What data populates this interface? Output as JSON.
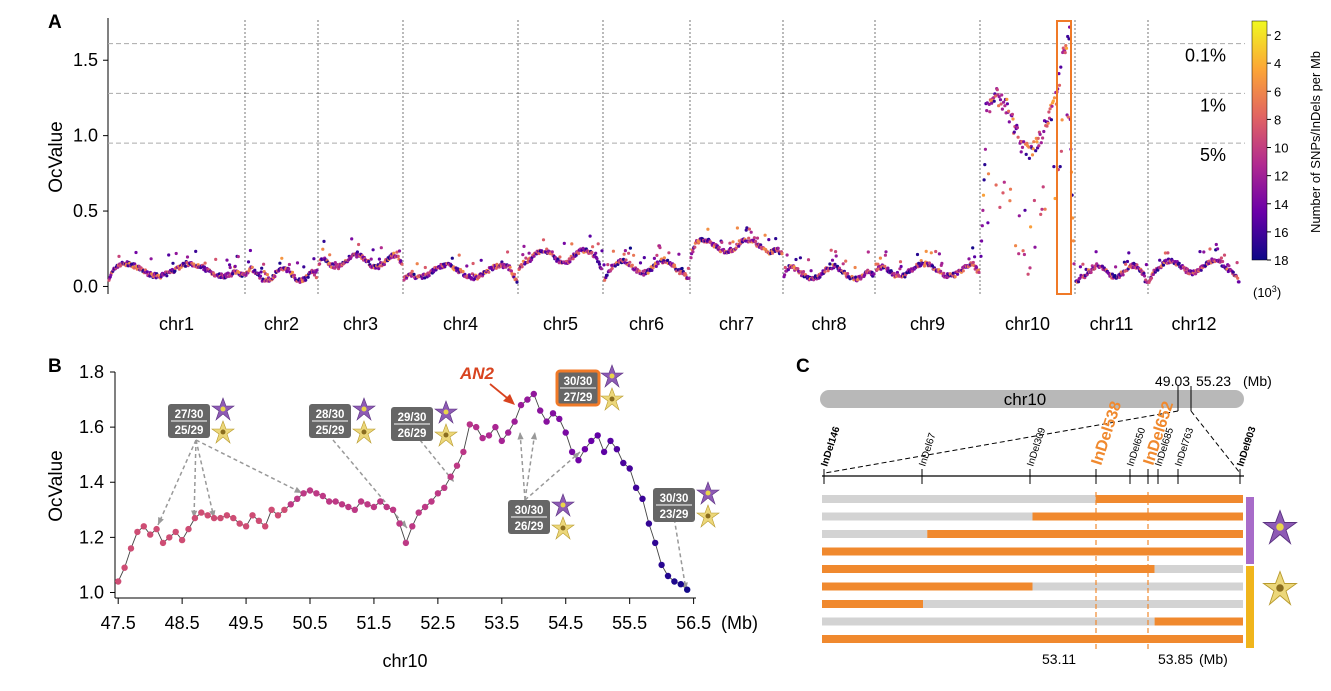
{
  "panels": {
    "a": {
      "letter": "A"
    },
    "b": {
      "letter": "B"
    },
    "c": {
      "letter": "C"
    }
  },
  "chart_data": [
    {
      "type": "scatter",
      "panel": "A",
      "ylabel": "OcValue",
      "xlabel": "",
      "ylim": [
        -0.05,
        1.78
      ],
      "yticks": [
        "0.0",
        "0.5",
        "1.0",
        "1.5"
      ],
      "ytick_values": [
        0.0,
        0.5,
        1.0,
        1.5
      ],
      "chromosomes": [
        "chr1",
        "chr2",
        "chr3",
        "chr4",
        "chr5",
        "chr6",
        "chr7",
        "chr8",
        "chr9",
        "chr10",
        "chr11",
        "chr12"
      ],
      "threshold_lines": [
        {
          "label": "0.1%",
          "value": 1.61
        },
        {
          "label": "1%",
          "value": 1.28
        },
        {
          "label": "5%",
          "value": 0.95
        }
      ],
      "mean_level_by_chromosome": [
        0.11,
        0.08,
        0.17,
        0.1,
        0.2,
        0.13,
        0.27,
        0.09,
        0.11,
        0.95,
        0.1,
        0.13
      ],
      "highlight": {
        "chromosome": "chr10",
        "description": "peak region"
      },
      "colorbar": {
        "label": "Number of SNPs/InDels per Mb",
        "unit": "(10³)",
        "ticks": [
          "2",
          "4",
          "6",
          "8",
          "10",
          "12",
          "14",
          "16",
          "18"
        ],
        "tick_values": [
          2,
          4,
          6,
          8,
          10,
          12,
          14,
          16,
          18
        ],
        "range": [
          1,
          18
        ],
        "colors": [
          "#f0f921",
          "#fca636",
          "#e16462",
          "#b12a90",
          "#6a00a8",
          "#0d0887"
        ]
      }
    },
    {
      "type": "line",
      "panel": "B",
      "xlabel": "chr10",
      "xunit": "(Mb)",
      "ylabel": "OcValue",
      "xticks": [
        "47.5",
        "48.5",
        "49.5",
        "50.5",
        "51.5",
        "52.5",
        "53.5",
        "54.5",
        "55.5",
        "56.5"
      ],
      "xtick_values": [
        47.5,
        48.5,
        49.5,
        50.5,
        51.5,
        52.5,
        53.5,
        54.5,
        55.5,
        56.5
      ],
      "yticks": [
        "1.0",
        "1.2",
        "1.4",
        "1.6",
        "1.8"
      ],
      "ytick_values": [
        1.0,
        1.2,
        1.4,
        1.6,
        1.8
      ],
      "xlim": [
        47.45,
        56.6
      ],
      "ylim": [
        0.98,
        1.8
      ],
      "x": [
        47.5,
        47.6,
        47.7,
        47.8,
        47.9,
        48.0,
        48.1,
        48.2,
        48.3,
        48.4,
        48.5,
        48.6,
        48.7,
        48.8,
        48.9,
        49.0,
        49.1,
        49.2,
        49.3,
        49.4,
        49.5,
        49.6,
        49.7,
        49.8,
        49.9,
        50.0,
        50.1,
        50.2,
        50.3,
        50.4,
        50.5,
        50.6,
        50.7,
        50.8,
        50.9,
        51.0,
        51.1,
        51.2,
        51.3,
        51.4,
        51.5,
        51.6,
        51.7,
        51.8,
        51.9,
        52.0,
        52.1,
        52.2,
        52.3,
        52.4,
        52.5,
        52.6,
        52.7,
        52.8,
        52.9,
        53.0,
        53.1,
        53.2,
        53.3,
        53.4,
        53.5,
        53.6,
        53.7,
        53.8,
        53.9,
        54.0,
        54.1,
        54.2,
        54.3,
        54.4,
        54.5,
        54.6,
        54.7,
        54.8,
        54.9,
        55.0,
        55.1,
        55.2,
        55.3,
        55.4,
        55.5,
        55.6,
        55.7,
        55.8,
        55.9,
        56.0,
        56.1,
        56.2,
        56.3,
        56.4
      ],
      "y": [
        1.04,
        1.09,
        1.16,
        1.22,
        1.24,
        1.21,
        1.23,
        1.18,
        1.2,
        1.22,
        1.19,
        1.23,
        1.27,
        1.29,
        1.28,
        1.27,
        1.27,
        1.28,
        1.27,
        1.25,
        1.24,
        1.28,
        1.26,
        1.24,
        1.3,
        1.28,
        1.3,
        1.32,
        1.34,
        1.36,
        1.37,
        1.36,
        1.35,
        1.33,
        1.33,
        1.32,
        1.31,
        1.3,
        1.33,
        1.32,
        1.31,
        1.33,
        1.31,
        1.3,
        1.25,
        1.18,
        1.24,
        1.29,
        1.31,
        1.33,
        1.36,
        1.38,
        1.42,
        1.46,
        1.51,
        1.61,
        1.6,
        1.56,
        1.57,
        1.6,
        1.55,
        1.58,
        1.62,
        1.68,
        1.7,
        1.72,
        1.66,
        1.62,
        1.65,
        1.63,
        1.58,
        1.51,
        1.48,
        1.52,
        1.55,
        1.57,
        1.51,
        1.55,
        1.52,
        1.47,
        1.45,
        1.38,
        1.34,
        1.25,
        1.18,
        1.1,
        1.06,
        1.04,
        1.03,
        1.01
      ],
      "annotations": [
        {
          "id": "g1",
          "top": "27/30",
          "bottom": "25/29"
        },
        {
          "id": "g2",
          "top": "28/30",
          "bottom": "25/29"
        },
        {
          "id": "g3",
          "top": "29/30",
          "bottom": "26/29"
        },
        {
          "id": "g4",
          "top": "30/30",
          "bottom": "27/29",
          "highlight": true
        },
        {
          "id": "g5",
          "top": "30/30",
          "bottom": "26/29"
        },
        {
          "id": "g6",
          "top": "30/30",
          "bottom": "23/29"
        }
      ],
      "gene_label": "AN2"
    },
    {
      "type": "diagram",
      "panel": "C",
      "chromosome_label": "chr10",
      "positions": [
        "49.03",
        "55.23"
      ],
      "position_unit": "(Mb)",
      "markers": [
        {
          "name": "InDel146",
          "bold": true
        },
        {
          "name": "InDel67"
        },
        {
          "name": "InDel309"
        },
        {
          "name": "InDel538",
          "highlight": true
        },
        {
          "name": "InDel650"
        },
        {
          "name": "InDel652",
          "highlight": true
        },
        {
          "name": "InDel685"
        },
        {
          "name": "InDel763"
        },
        {
          "name": "InDel903",
          "bold": true
        }
      ],
      "interval": {
        "left": "53.11",
        "right": "53.85",
        "unit": "(Mb)"
      },
      "haplotype_rows": [
        [
          [
            0.0,
            0.65,
            "g"
          ],
          [
            0.65,
            1.0,
            "o"
          ]
        ],
        [
          [
            0.0,
            0.5,
            "g"
          ],
          [
            0.5,
            1.0,
            "o"
          ]
        ],
        [
          [
            0.0,
            0.25,
            "g"
          ],
          [
            0.25,
            1.0,
            "o"
          ]
        ],
        [
          [
            0.0,
            1.0,
            "o"
          ]
        ],
        [
          [
            0.0,
            0.79,
            "o"
          ],
          [
            0.79,
            1.0,
            "g"
          ]
        ],
        [
          [
            0.0,
            0.5,
            "o"
          ],
          [
            0.5,
            1.0,
            "g"
          ]
        ],
        [
          [
            0.0,
            0.24,
            "o"
          ],
          [
            0.24,
            1.0,
            "g"
          ]
        ],
        [
          [
            0.0,
            0.79,
            "g"
          ],
          [
            0.79,
            1.0,
            "o"
          ]
        ],
        [
          [
            0.0,
            1.0,
            "o"
          ]
        ]
      ],
      "colors": {
        "orange": "#f0892e",
        "grey": "#d3d3d3",
        "purple": "#a86cc9",
        "yellow": "#f0b51c"
      }
    }
  ]
}
